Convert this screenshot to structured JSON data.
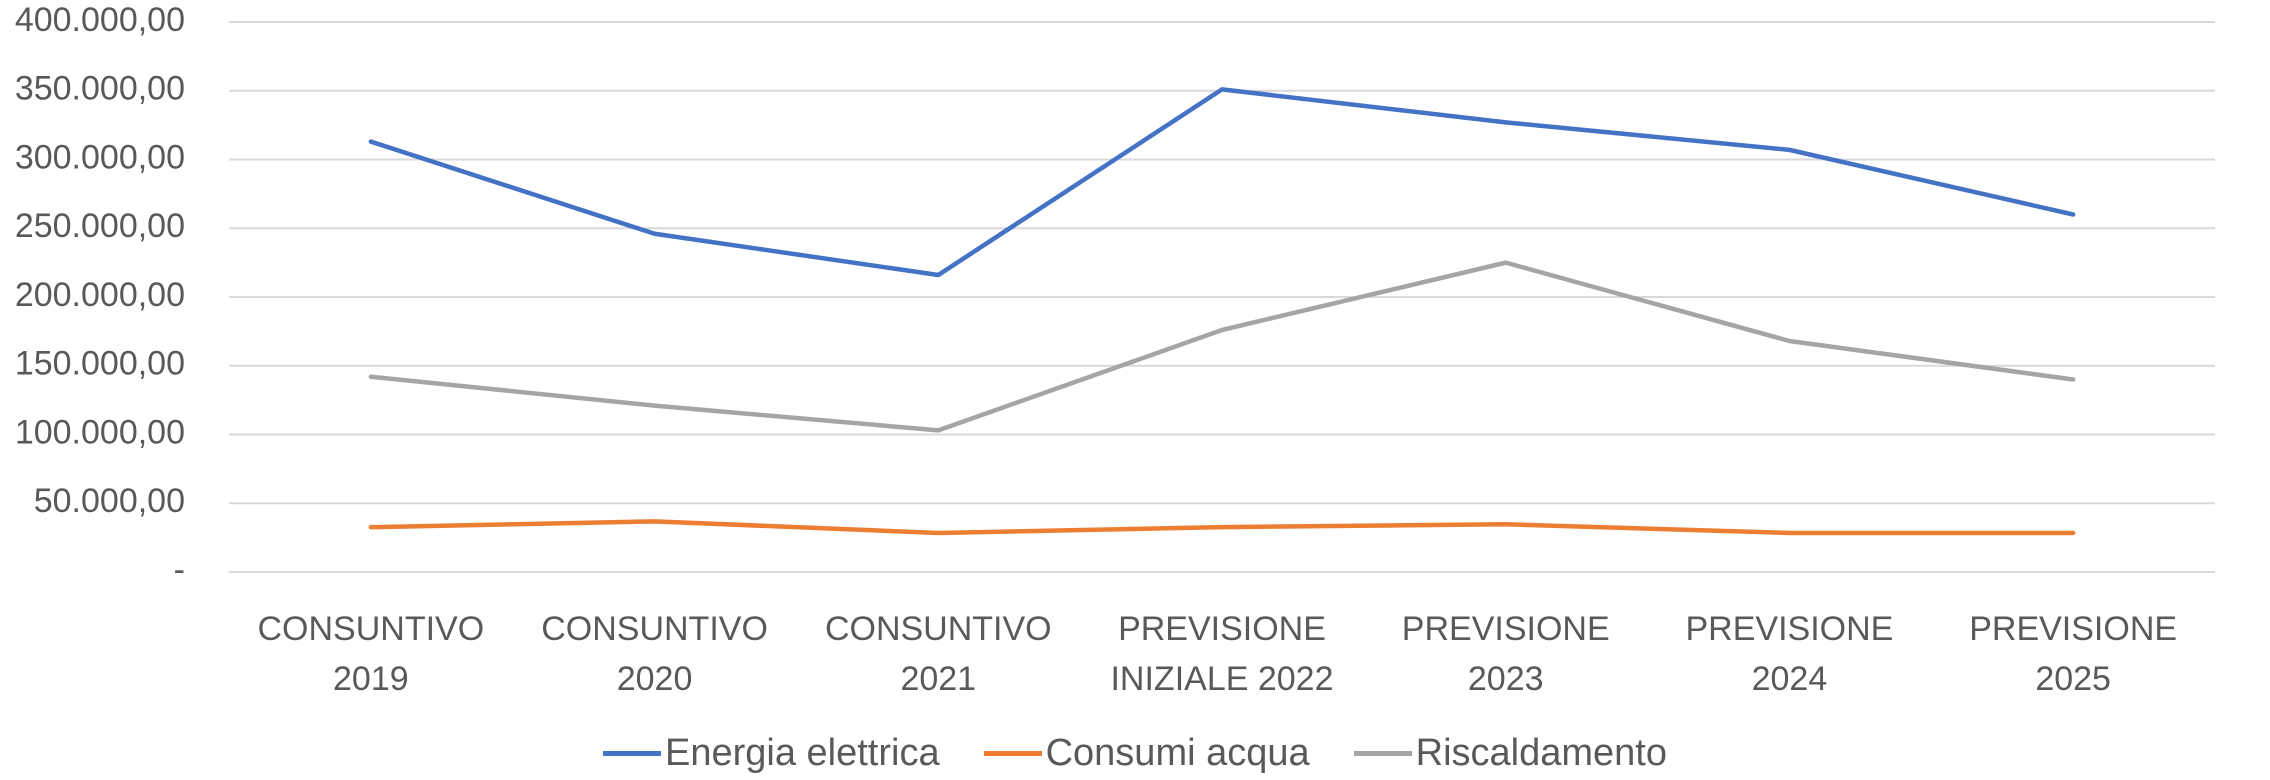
{
  "chart_data": {
    "type": "line",
    "categories": [
      "CONSUNTIVO\n2019",
      "CONSUNTIVO\n2020",
      "CONSUNTIVO\n2021",
      "PREVISIONE\nINIZIALE 2022",
      "PREVISIONE\n2023",
      "PREVISIONE\n2024",
      "PREVISIONE\n2025"
    ],
    "series": [
      {
        "name": "Energia elettrica",
        "color": "#4472c4",
        "values": [
          313000,
          246000,
          216000,
          351000,
          327000,
          307000,
          260000
        ]
      },
      {
        "name": "Consumi acqua",
        "color": "#ed7d31",
        "values": [
          32600,
          36800,
          28400,
          32600,
          34700,
          28400,
          28400
        ]
      },
      {
        "name": "Riscaldamento",
        "color": "#a5a5a5",
        "values": [
          142000,
          121000,
          103000,
          176000,
          225000,
          168000,
          140000
        ]
      }
    ],
    "ylim": [
      0,
      400000
    ],
    "yticks": [
      {
        "value": 0,
        "label": "-"
      },
      {
        "value": 50000,
        "label": "50.000,00"
      },
      {
        "value": 100000,
        "label": "100.000,00"
      },
      {
        "value": 150000,
        "label": "150.000,00"
      },
      {
        "value": 200000,
        "label": "200.000,00"
      },
      {
        "value": 250000,
        "label": "250.000,00"
      },
      {
        "value": 300000,
        "label": "300.000,00"
      },
      {
        "value": 350000,
        "label": "350.000,00"
      },
      {
        "value": 400000,
        "label": "400.000,00"
      }
    ],
    "grid": true,
    "legend": "bottom"
  }
}
